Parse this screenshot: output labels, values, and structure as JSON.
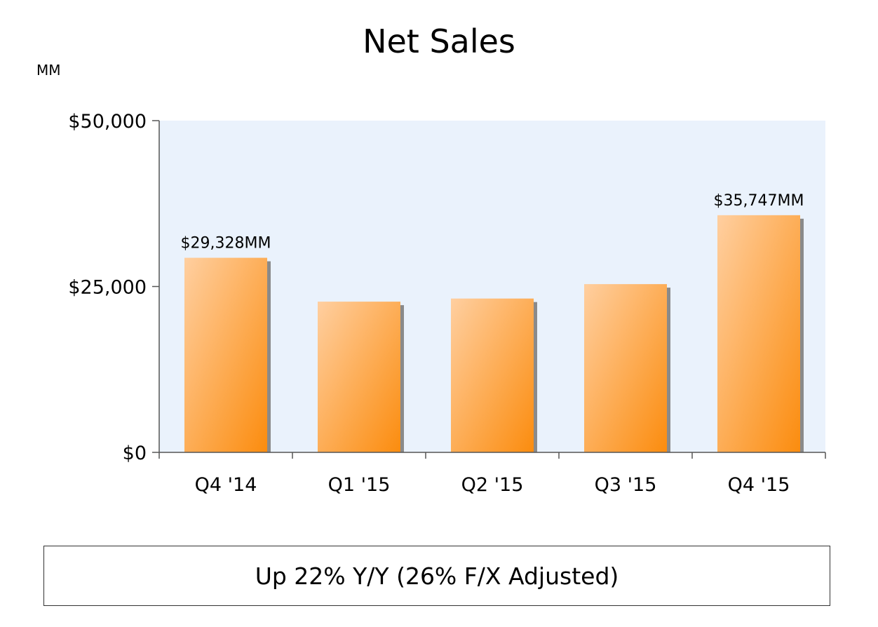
{
  "colors": {
    "plot_background": "#eaf2fc",
    "bar_light": "#ffcfa0",
    "bar_dark": "#fb8c0e",
    "bar_shadow": "#8a8a8a",
    "axis": "#555555"
  },
  "summary": "Up 22% Y/Y (26% F/X Adjusted)",
  "chart_data": {
    "type": "bar",
    "title": "Net Sales",
    "unit_label": "MM",
    "xlabel": "",
    "ylabel": "",
    "categories": [
      "Q4 '14",
      "Q1 '15",
      "Q2 '15",
      "Q3 '15",
      "Q4 '15"
    ],
    "values": [
      29328,
      22717,
      23185,
      25358,
      35747
    ],
    "data_labels": [
      "$29,328MM",
      "",
      "",
      "",
      "$35,747MM"
    ],
    "ylim": [
      0,
      50000
    ],
    "y_ticks": [
      0,
      25000,
      50000
    ],
    "y_tick_labels": [
      "$0",
      "$25,000",
      "$50,000"
    ],
    "grid": false,
    "legend": "none"
  }
}
